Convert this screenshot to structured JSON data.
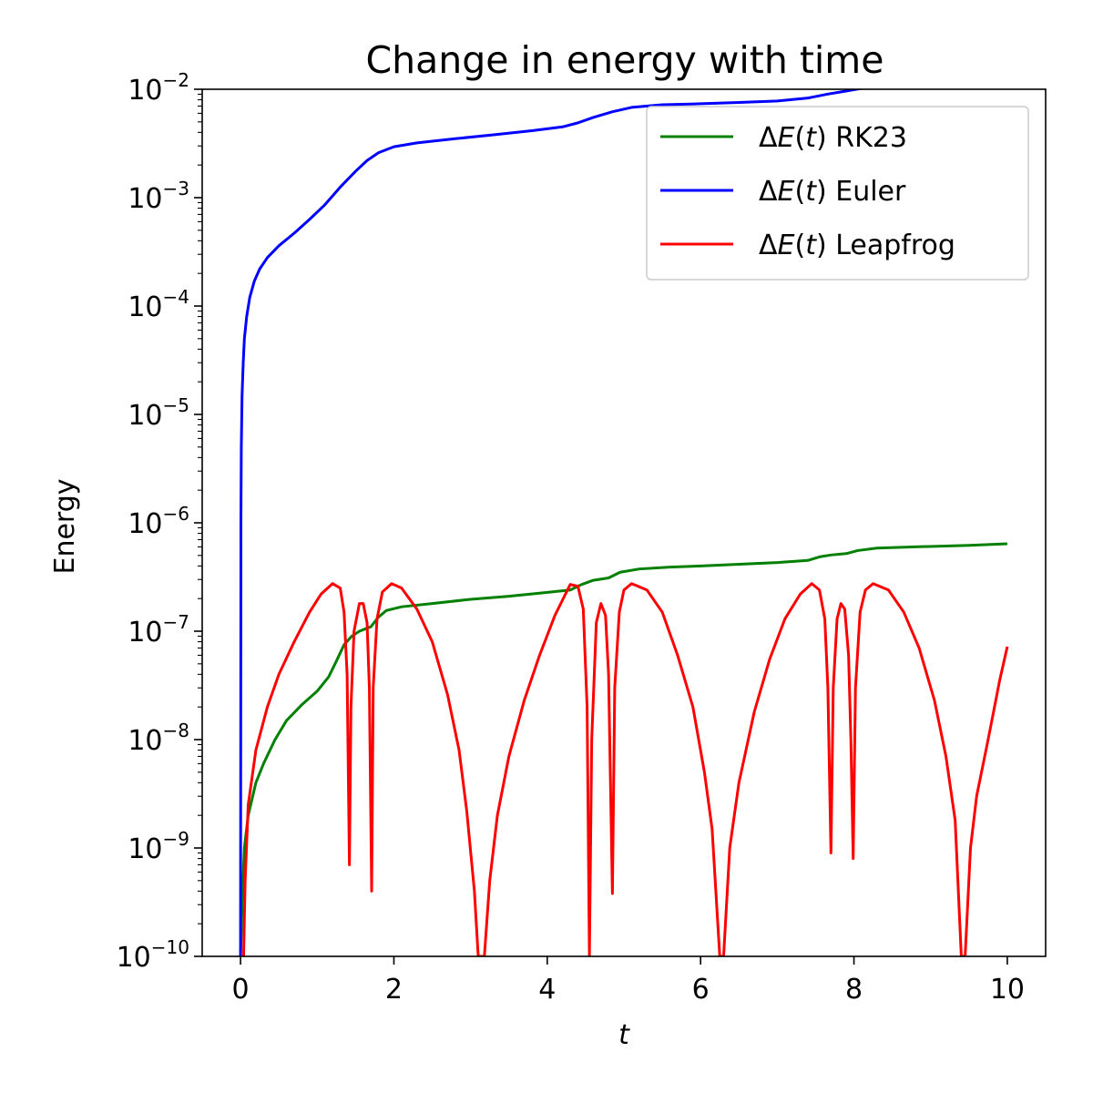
{
  "chart_data": {
    "type": "line",
    "title": "Change in energy with time",
    "xlabel": "t",
    "ylabel": "Energy",
    "xlim": [
      -0.5,
      10.5
    ],
    "ylim": [
      1e-10,
      0.01
    ],
    "yscale": "log",
    "xticks": [
      0,
      2,
      4,
      6,
      8,
      10
    ],
    "xtick_labels": [
      "0",
      "2",
      "4",
      "6",
      "8",
      "10"
    ],
    "yticks": [
      1e-10,
      1e-09,
      1e-08,
      1e-07,
      1e-06,
      1e-05,
      0.0001,
      0.001,
      0.01
    ],
    "ytick_base": "10",
    "ytick_exponents": [
      "−10",
      "−9",
      "−8",
      "−7",
      "−6",
      "−5",
      "−4",
      "−3",
      "−2"
    ],
    "grid": false,
    "legend_position": "top-right",
    "series": [
      {
        "name": "RK23",
        "legend_prefix": "Δ",
        "legend_var": "E",
        "legend_paren_open": "(",
        "legend_arg": "t",
        "legend_paren_close": ")",
        "legend_suffix": " RK23",
        "color": "#008000",
        "points": [
          [
            0.0,
            1e-10
          ],
          [
            0.02,
            3e-10
          ],
          [
            0.05,
            1e-09
          ],
          [
            0.1,
            2e-09
          ],
          [
            0.2,
            4e-09
          ],
          [
            0.3,
            6e-09
          ],
          [
            0.45,
            1e-08
          ],
          [
            0.6,
            1.5e-08
          ],
          [
            0.8,
            2.1e-08
          ],
          [
            1.0,
            2.8e-08
          ],
          [
            1.15,
            3.8e-08
          ],
          [
            1.25,
            5.3e-08
          ],
          [
            1.35,
            7.5e-08
          ],
          [
            1.45,
            9e-08
          ],
          [
            1.55,
            1e-07
          ],
          [
            1.7,
            1.1e-07
          ],
          [
            1.8,
            1.35e-07
          ],
          [
            1.9,
            1.55e-07
          ],
          [
            2.1,
            1.68e-07
          ],
          [
            2.5,
            1.8e-07
          ],
          [
            3.0,
            1.97e-07
          ],
          [
            3.5,
            2.1e-07
          ],
          [
            4.0,
            2.28e-07
          ],
          [
            4.3,
            2.4e-07
          ],
          [
            4.45,
            2.7e-07
          ],
          [
            4.6,
            2.95e-07
          ],
          [
            4.8,
            3.1e-07
          ],
          [
            4.95,
            3.5e-07
          ],
          [
            5.2,
            3.75e-07
          ],
          [
            5.6,
            3.9e-07
          ],
          [
            6.0,
            4e-07
          ],
          [
            6.5,
            4.15e-07
          ],
          [
            7.0,
            4.3e-07
          ],
          [
            7.4,
            4.5e-07
          ],
          [
            7.55,
            4.85e-07
          ],
          [
            7.7,
            5.05e-07
          ],
          [
            7.9,
            5.2e-07
          ],
          [
            8.05,
            5.55e-07
          ],
          [
            8.3,
            5.85e-07
          ],
          [
            8.8,
            6e-07
          ],
          [
            9.5,
            6.2e-07
          ],
          [
            10.0,
            6.4e-07
          ]
        ]
      },
      {
        "name": "Euler",
        "legend_prefix": "Δ",
        "legend_var": "E",
        "legend_paren_open": "(",
        "legend_arg": "t",
        "legend_paren_close": ")",
        "legend_suffix": " Euler",
        "color": "#0000ff",
        "points": [
          [
            0.0,
            1e-10
          ],
          [
            0.005,
            1e-06
          ],
          [
            0.01,
            5e-06
          ],
          [
            0.02,
            1.5e-05
          ],
          [
            0.035,
            3e-05
          ],
          [
            0.05,
            5e-05
          ],
          [
            0.08,
            8e-05
          ],
          [
            0.12,
            0.00012
          ],
          [
            0.18,
            0.00017
          ],
          [
            0.25,
            0.00022
          ],
          [
            0.35,
            0.00028
          ],
          [
            0.5,
            0.00036
          ],
          [
            0.7,
            0.00047
          ],
          [
            0.9,
            0.00063
          ],
          [
            1.1,
            0.00086
          ],
          [
            1.3,
            0.00125
          ],
          [
            1.5,
            0.00175
          ],
          [
            1.65,
            0.0022
          ],
          [
            1.8,
            0.0026
          ],
          [
            2.0,
            0.00295
          ],
          [
            2.3,
            0.0032
          ],
          [
            2.8,
            0.0035
          ],
          [
            3.3,
            0.0038
          ],
          [
            3.8,
            0.00415
          ],
          [
            4.2,
            0.0045
          ],
          [
            4.4,
            0.0049
          ],
          [
            4.6,
            0.0055
          ],
          [
            4.85,
            0.0062
          ],
          [
            5.1,
            0.0068
          ],
          [
            5.5,
            0.0072
          ],
          [
            6.0,
            0.00735
          ],
          [
            6.5,
            0.00755
          ],
          [
            7.0,
            0.0078
          ],
          [
            7.4,
            0.0083
          ],
          [
            7.65,
            0.009
          ],
          [
            7.85,
            0.0095
          ],
          [
            8.1,
            0.0102
          ]
        ]
      },
      {
        "name": "Leapfrog",
        "legend_prefix": "Δ",
        "legend_var": "E",
        "legend_paren_open": "(",
        "legend_arg": "t",
        "legend_paren_close": ")",
        "legend_suffix": " Leapfrog",
        "color": "#ff0000",
        "points": [
          [
            0.04,
            1e-10
          ],
          [
            0.06,
            5e-10
          ],
          [
            0.1,
            2.5e-09
          ],
          [
            0.2,
            8e-09
          ],
          [
            0.35,
            2e-08
          ],
          [
            0.5,
            4e-08
          ],
          [
            0.7,
            8e-08
          ],
          [
            0.9,
            1.5e-07
          ],
          [
            1.05,
            2.2e-07
          ],
          [
            1.2,
            2.75e-07
          ],
          [
            1.3,
            2.5e-07
          ],
          [
            1.35,
            1.5e-07
          ],
          [
            1.39,
            4e-08
          ],
          [
            1.42,
            7e-10
          ],
          [
            1.44,
            2e-08
          ],
          [
            1.48,
            1e-07
          ],
          [
            1.55,
            1.8e-07
          ],
          [
            1.6,
            1.8e-07
          ],
          [
            1.65,
            1.2e-07
          ],
          [
            1.68,
            3e-08
          ],
          [
            1.71,
            4e-10
          ],
          [
            1.73,
            3e-08
          ],
          [
            1.78,
            1.3e-07
          ],
          [
            1.85,
            2.3e-07
          ],
          [
            1.97,
            2.75e-07
          ],
          [
            2.1,
            2.5e-07
          ],
          [
            2.3,
            1.6e-07
          ],
          [
            2.5,
            8e-08
          ],
          [
            2.7,
            2.6e-08
          ],
          [
            2.85,
            8e-09
          ],
          [
            2.95,
            2.2e-09
          ],
          [
            3.05,
            4e-10
          ],
          [
            3.1,
            1e-10
          ],
          [
            3.18,
            1e-10
          ],
          [
            3.25,
            5e-10
          ],
          [
            3.35,
            2e-09
          ],
          [
            3.5,
            7e-09
          ],
          [
            3.7,
            2.3e-08
          ],
          [
            3.9,
            6e-08
          ],
          [
            4.1,
            1.4e-07
          ],
          [
            4.3,
            2.7e-07
          ],
          [
            4.4,
            2.6e-07
          ],
          [
            4.47,
            1.6e-07
          ],
          [
            4.52,
            2e-08
          ],
          [
            4.55,
            1e-10
          ],
          [
            4.58,
            1e-08
          ],
          [
            4.64,
            1.2e-07
          ],
          [
            4.7,
            1.8e-07
          ],
          [
            4.76,
            1.4e-07
          ],
          [
            4.8,
            4e-08
          ],
          [
            4.85,
            3.8e-10
          ],
          [
            4.88,
            3e-08
          ],
          [
            4.94,
            1.5e-07
          ],
          [
            5.0,
            2.4e-07
          ],
          [
            5.1,
            2.75e-07
          ],
          [
            5.3,
            2.4e-07
          ],
          [
            5.5,
            1.5e-07
          ],
          [
            5.7,
            6e-08
          ],
          [
            5.9,
            2e-08
          ],
          [
            6.05,
            5e-09
          ],
          [
            6.15,
            1.5e-09
          ],
          [
            6.25,
            1e-10
          ],
          [
            6.3,
            1e-10
          ],
          [
            6.38,
            1e-09
          ],
          [
            6.5,
            4e-09
          ],
          [
            6.7,
            1.8e-08
          ],
          [
            6.9,
            5.5e-08
          ],
          [
            7.1,
            1.3e-07
          ],
          [
            7.3,
            2.2e-07
          ],
          [
            7.45,
            2.75e-07
          ],
          [
            7.55,
            2.4e-07
          ],
          [
            7.62,
            1.3e-07
          ],
          [
            7.66,
            3e-08
          ],
          [
            7.7,
            9e-10
          ],
          [
            7.73,
            3e-08
          ],
          [
            7.78,
            1.3e-07
          ],
          [
            7.83,
            1.8e-07
          ],
          [
            7.88,
            1.6e-07
          ],
          [
            7.93,
            6e-08
          ],
          [
            7.96,
            1e-08
          ],
          [
            7.99,
            8e-10
          ],
          [
            8.02,
            3e-08
          ],
          [
            8.08,
            1.5e-07
          ],
          [
            8.15,
            2.4e-07
          ],
          [
            8.25,
            2.75e-07
          ],
          [
            8.45,
            2.4e-07
          ],
          [
            8.65,
            1.5e-07
          ],
          [
            8.85,
            7e-08
          ],
          [
            9.05,
            2.3e-08
          ],
          [
            9.2,
            7e-09
          ],
          [
            9.32,
            1.8e-09
          ],
          [
            9.4,
            1e-10
          ],
          [
            9.45,
            1e-10
          ],
          [
            9.52,
            1e-09
          ],
          [
            9.6,
            3e-09
          ],
          [
            9.75,
            1e-08
          ],
          [
            9.9,
            3.5e-08
          ],
          [
            10.0,
            7.2e-08
          ]
        ]
      }
    ]
  }
}
